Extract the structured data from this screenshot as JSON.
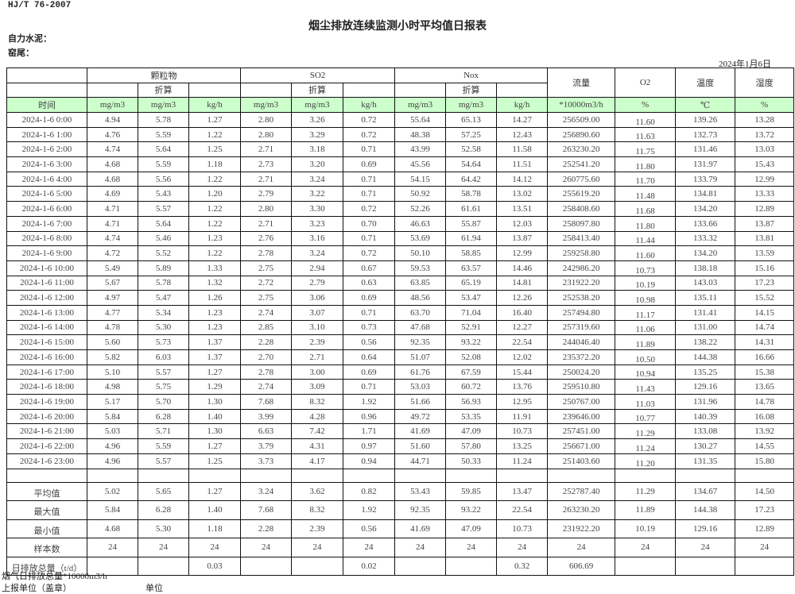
{
  "header": {
    "standard": "HJ/T  76-2007",
    "title": "烟尘排放连续监测小时平均值日报表",
    "company": "自力水泥：",
    "kiln": "窑尾：",
    "date": "2024年1月6日"
  },
  "columns": {
    "groups": {
      "particulate": "颗粒物",
      "so2": "SO2",
      "nox": "Nox",
      "flow": "流量",
      "o2": "O2",
      "temperature": "温度",
      "humidity": "湿度"
    },
    "converted": "折算",
    "units": [
      "时间",
      "mg/m3",
      "mg/m3",
      "kg/h",
      "mg/m3",
      "mg/m3",
      "kg/h",
      "mg/m3",
      "mg/m3",
      "kg/h",
      "*10000m3/h",
      "%",
      "℃",
      "%"
    ]
  },
  "rows": [
    [
      "2024-1-6 0:00",
      "4.94",
      "5.78",
      "1.27",
      "2.80",
      "3.26",
      "0.72",
      "55.64",
      "65.13",
      "14.27",
      "256509.00",
      "11.60",
      "139.26",
      "13.28"
    ],
    [
      "2024-1-6 1:00",
      "4.76",
      "5.59",
      "1.22",
      "2.80",
      "3.29",
      "0.72",
      "48.38",
      "57.25",
      "12.43",
      "256890.60",
      "11.63",
      "132.73",
      "13.72"
    ],
    [
      "2024-1-6 2:00",
      "4.74",
      "5.64",
      "1.25",
      "2.71",
      "3.18",
      "0.71",
      "43.99",
      "52.58",
      "11.58",
      "263230.20",
      "11.75",
      "131.46",
      "13.03"
    ],
    [
      "2024-1-6 3:00",
      "4.68",
      "5.59",
      "1.18",
      "2.73",
      "3.20",
      "0.69",
      "45.56",
      "54.64",
      "11.51",
      "252541.20",
      "11.80",
      "131.97",
      "15.43"
    ],
    [
      "2024-1-6 4:00",
      "4.68",
      "5.56",
      "1.22",
      "2.71",
      "3.24",
      "0.71",
      "54.15",
      "64.42",
      "14.12",
      "260775.60",
      "11.70",
      "133.79",
      "12.99"
    ],
    [
      "2024-1-6 5:00",
      "4.69",
      "5.43",
      "1.20",
      "2.79",
      "3.22",
      "0.71",
      "50.92",
      "58.78",
      "13.02",
      "255619.20",
      "11.48",
      "134.81",
      "13.33"
    ],
    [
      "2024-1-6 6:00",
      "4.71",
      "5.57",
      "1.22",
      "2.80",
      "3.30",
      "0.72",
      "52.26",
      "61.61",
      "13.51",
      "258408.60",
      "11.68",
      "134.20",
      "12.89"
    ],
    [
      "2024-1-6 7:00",
      "4.71",
      "5.64",
      "1.22",
      "2.71",
      "3.23",
      "0.70",
      "46.63",
      "55.87",
      "12.03",
      "258097.80",
      "11.80",
      "133.66",
      "13.87"
    ],
    [
      "2024-1-6 8:00",
      "4.74",
      "5.46",
      "1.23",
      "2.76",
      "3.16",
      "0.71",
      "53.69",
      "61.94",
      "13.87",
      "258413.40",
      "11.44",
      "133.32",
      "13.81"
    ],
    [
      "2024-1-6 9:00",
      "4.72",
      "5.52",
      "1.22",
      "2.78",
      "3.24",
      "0.72",
      "50.10",
      "58.85",
      "12.99",
      "259258.80",
      "11.60",
      "134.20",
      "13.59"
    ],
    [
      "2024-1-6 10:00",
      "5.49",
      "5.89",
      "1.33",
      "2.75",
      "2.94",
      "0.67",
      "59.53",
      "63.57",
      "14.46",
      "242986.20",
      "10.73",
      "138.18",
      "15.16"
    ],
    [
      "2024-1-6 11:00",
      "5.67",
      "5.78",
      "1.32",
      "2.72",
      "2.79",
      "0.63",
      "63.85",
      "65.19",
      "14.81",
      "231922.20",
      "10.19",
      "143.03",
      "17.23"
    ],
    [
      "2024-1-6 12:00",
      "4.97",
      "5.47",
      "1.26",
      "2.75",
      "3.06",
      "0.69",
      "48.56",
      "53.47",
      "12.26",
      "252538.20",
      "10.98",
      "135.11",
      "15.52"
    ],
    [
      "2024-1-6 13:00",
      "4.77",
      "5.34",
      "1.23",
      "2.74",
      "3.07",
      "0.71",
      "63.70",
      "71.04",
      "16.40",
      "257494.80",
      "11.17",
      "131.41",
      "14.15"
    ],
    [
      "2024-1-6 14:00",
      "4.78",
      "5.30",
      "1.23",
      "2.85",
      "3.10",
      "0.73",
      "47.68",
      "52.91",
      "12.27",
      "257319.60",
      "11.06",
      "131.00",
      "14.74"
    ],
    [
      "2024-1-6 15:00",
      "5.60",
      "5.73",
      "1.37",
      "2.28",
      "2.39",
      "0.56",
      "92.35",
      "93.22",
      "22.54",
      "244046.40",
      "11.89",
      "138.22",
      "14.31"
    ],
    [
      "2024-1-6 16:00",
      "5.82",
      "6.03",
      "1.37",
      "2.70",
      "2.71",
      "0.64",
      "51.07",
      "52.08",
      "12.02",
      "235372.20",
      "10.50",
      "144.38",
      "16.66"
    ],
    [
      "2024-1-6 17:00",
      "5.10",
      "5.57",
      "1.27",
      "2.78",
      "3.00",
      "0.69",
      "61.76",
      "67.59",
      "15.44",
      "250024.20",
      "10.94",
      "135.25",
      "15.38"
    ],
    [
      "2024-1-6 18:00",
      "4.98",
      "5.75",
      "1.29",
      "2.74",
      "3.09",
      "0.71",
      "53.03",
      "60.72",
      "13.76",
      "259510.80",
      "11.43",
      "129.16",
      "13.65"
    ],
    [
      "2024-1-6 19:00",
      "5.17",
      "5.70",
      "1.30",
      "7.68",
      "8.32",
      "1.92",
      "51.66",
      "56.93",
      "12.95",
      "250767.00",
      "11.03",
      "131.96",
      "14.78"
    ],
    [
      "2024-1-6 20:00",
      "5.84",
      "6.28",
      "1.40",
      "3.99",
      "4.28",
      "0.96",
      "49.72",
      "53.35",
      "11.91",
      "239646.00",
      "10.77",
      "140.39",
      "16.08"
    ],
    [
      "2024-1-6 21:00",
      "5.03",
      "5.71",
      "1.30",
      "6.63",
      "7.42",
      "1.71",
      "41.69",
      "47.09",
      "10.73",
      "257451.00",
      "11.29",
      "133.08",
      "13.92"
    ],
    [
      "2024-1-6 22:00",
      "4.96",
      "5.59",
      "1.27",
      "3.79",
      "4.31",
      "0.97",
      "51.60",
      "57.80",
      "13.25",
      "256671.00",
      "11.24",
      "130.27",
      "14.55"
    ],
    [
      "2024-1-6 23:00",
      "4.96",
      "5.57",
      "1.25",
      "3.73",
      "4.17",
      "0.94",
      "44.71",
      "50.33",
      "11.24",
      "251403.60",
      "11.20",
      "131.35",
      "15.80"
    ]
  ],
  "summary": [
    [
      "平均值",
      "5.02",
      "5.65",
      "1.27",
      "3.24",
      "3.62",
      "0.82",
      "53.43",
      "59.85",
      "13.47",
      "252787.40",
      "11.29",
      "134.67",
      "14.50"
    ],
    [
      "最大值",
      "5.84",
      "6.28",
      "1.40",
      "7.68",
      "8.32",
      "1.92",
      "92.35",
      "93.22",
      "22.54",
      "263230.20",
      "11.89",
      "144.38",
      "17.23"
    ],
    [
      "最小值",
      "4.68",
      "5.30",
      "1.18",
      "2.28",
      "2.39",
      "0.56",
      "41.69",
      "47.09",
      "10.73",
      "231922.20",
      "10.19",
      "129.16",
      "12.89"
    ],
    [
      "样本数",
      "24",
      "24",
      "24",
      "24",
      "24",
      "24",
      "24",
      "24",
      "24",
      "24",
      "24",
      "24",
      "24"
    ],
    [
      "日排放总量（t/d）",
      "",
      "",
      "0.03",
      "",
      "",
      "0.02",
      "",
      "",
      "0.32",
      "606.69",
      "",
      "",
      ""
    ]
  ],
  "footer": {
    "flue_gas_total": "烟气日排放总量*10000m3/h",
    "reporting_unit": "上报单位（盖章）",
    "unit": "单位"
  },
  "colors": {
    "unit_row_bg": "#ccffcc"
  }
}
